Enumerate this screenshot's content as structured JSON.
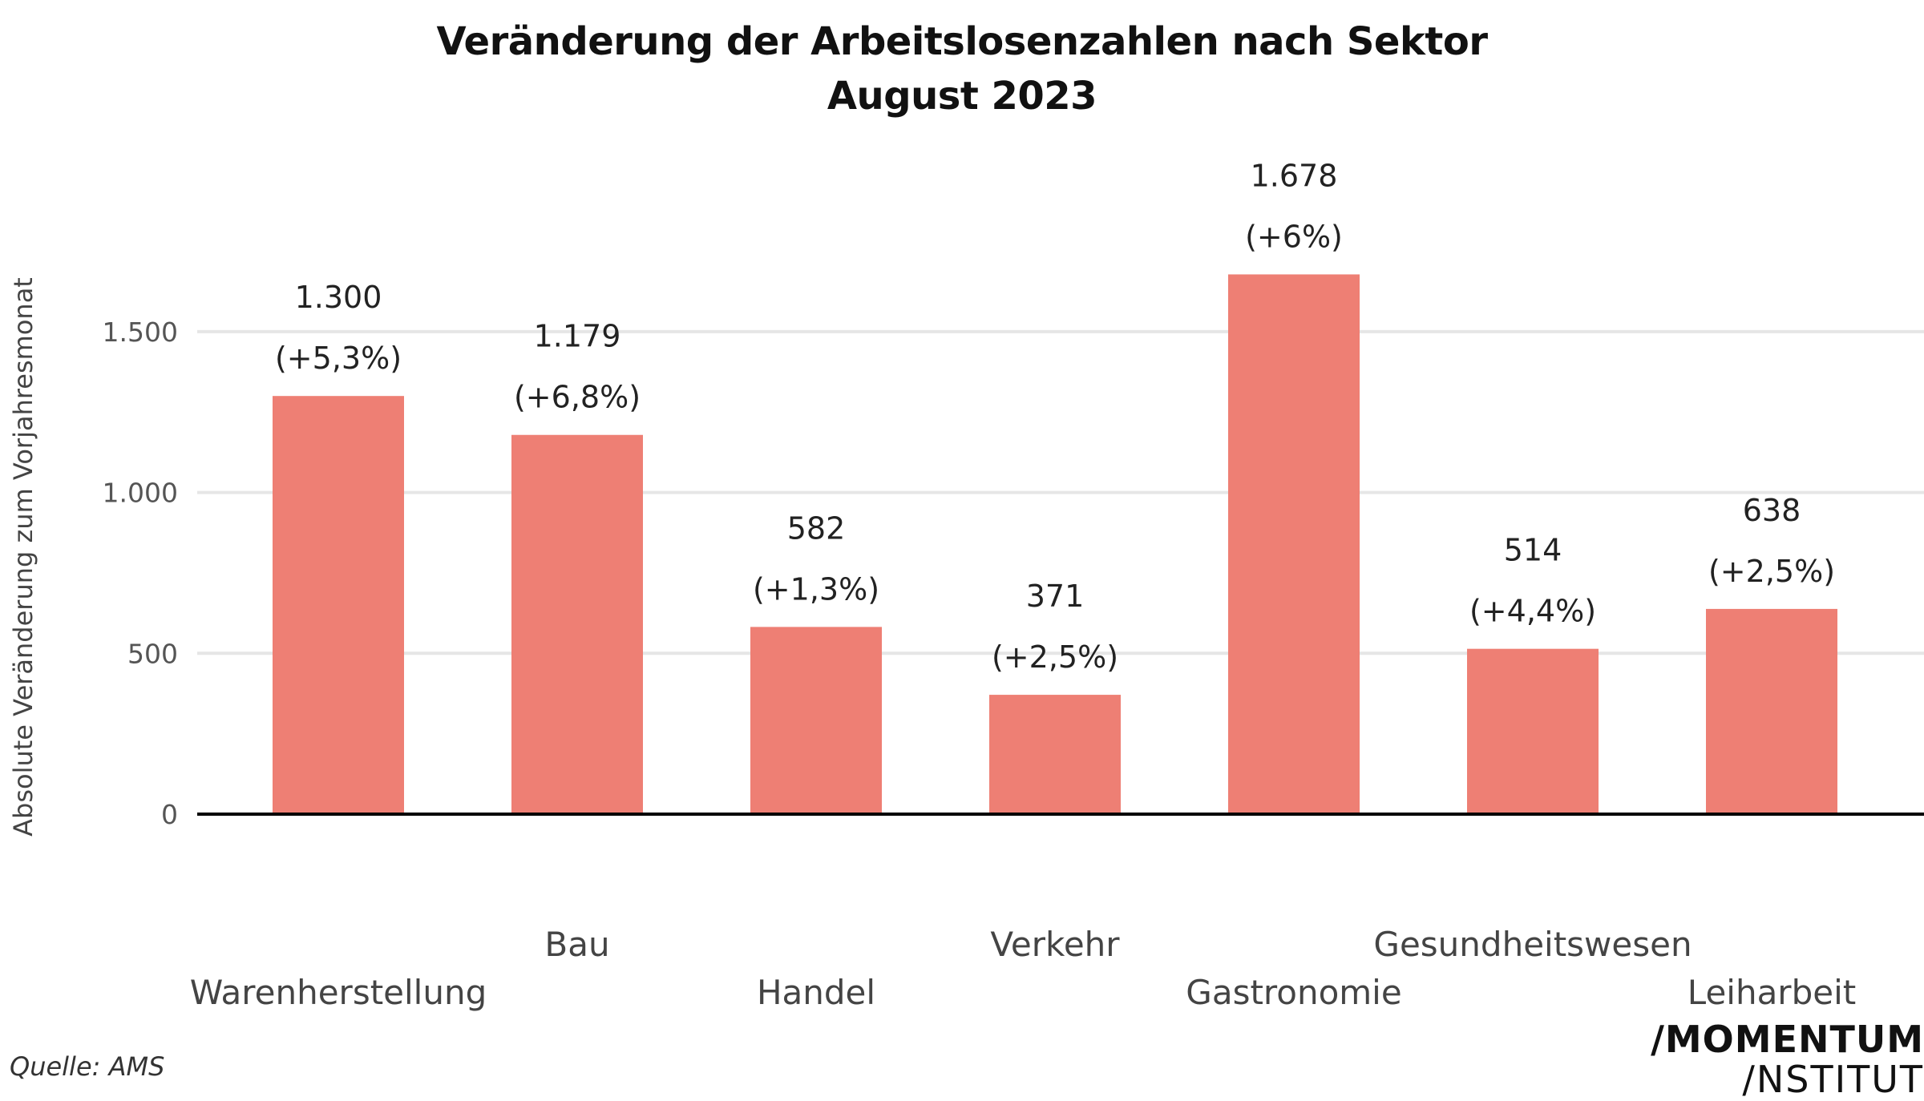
{
  "chart_data": {
    "type": "bar",
    "title": "Veränderung der Arbeitslosenzahlen nach Sektor",
    "subtitle": "August 2023",
    "ylabel": "Absolute Veränderung zum Vorjahresmonat",
    "xlabel": "",
    "categories": [
      "Warenherstellung",
      "Bau",
      "Handel",
      "Verkehr",
      "Gastronomie",
      "Gesundheitswesen",
      "Leiharbeit"
    ],
    "values": [
      1300,
      1179,
      582,
      371,
      1678,
      514,
      638
    ],
    "value_labels": [
      "1.300",
      "1.179",
      "582",
      "371",
      "1.678",
      "514",
      "638"
    ],
    "pct_labels": [
      "(+5,3%)",
      "(+6,8%)",
      "(+1,3%)",
      "(+2,5%)",
      "(+6%)",
      "(+4,4%)",
      "(+2,5%)"
    ],
    "yticks": [
      0,
      500,
      1000,
      1500
    ],
    "ytick_labels": [
      "0",
      "500",
      "1.000",
      "1.500"
    ],
    "ylim": [
      0,
      1700
    ],
    "grid": true,
    "bar_color": "#ee7f74",
    "grid_color": "#e6e6e6",
    "axis_color": "#000000"
  },
  "source": "Quelle: AMS",
  "logo": {
    "line1": "/MOMENTUM",
    "line2": "/NSTITUT"
  }
}
